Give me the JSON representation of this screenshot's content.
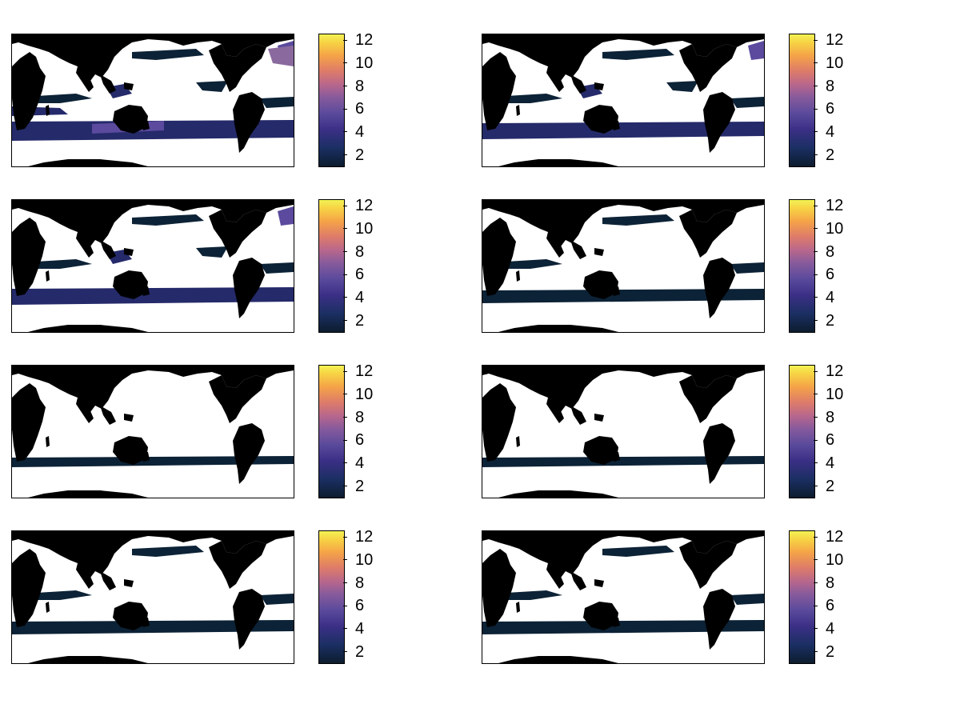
{
  "colors": {
    "land": "#000000",
    "ocean_mask": "#ffffff",
    "low": "#0c2236",
    "mid": "#252a6a",
    "high": "#5b4a9e",
    "peak": "#8a6a9e",
    "colormap": [
      "#0c1c2e",
      "#1b2f63",
      "#3b2f86",
      "#865a9c",
      "#dd7b6a",
      "#f5a347",
      "#f2f254"
    ]
  },
  "colorbar": {
    "min": 1,
    "max": 12.5,
    "ticks": [
      "2",
      "4",
      "6",
      "8",
      "10",
      "12"
    ]
  },
  "chart_data": {
    "type": "heatmap",
    "layout": "4 rows x 2 columns of global maps with colorbars",
    "panels": [
      {
        "row": 1,
        "col": 1,
        "intensity_level": 4,
        "colorbar_range": [
          1,
          12.5
        ]
      },
      {
        "row": 1,
        "col": 2,
        "intensity_level": 3,
        "colorbar_range": [
          1,
          12.5
        ]
      },
      {
        "row": 2,
        "col": 1,
        "intensity_level": 3,
        "colorbar_range": [
          1,
          12.5
        ]
      },
      {
        "row": 2,
        "col": 2,
        "intensity_level": 2,
        "colorbar_range": [
          1,
          12.5
        ]
      },
      {
        "row": 3,
        "col": 1,
        "intensity_level": 1,
        "colorbar_range": [
          1,
          12.5
        ]
      },
      {
        "row": 3,
        "col": 2,
        "intensity_level": 1,
        "colorbar_range": [
          1,
          12.5
        ]
      },
      {
        "row": 4,
        "col": 1,
        "intensity_level": 2,
        "colorbar_range": [
          1,
          12.5
        ]
      },
      {
        "row": 4,
        "col": 2,
        "intensity_level": 2,
        "colorbar_range": [
          1,
          12.5
        ]
      }
    ]
  }
}
